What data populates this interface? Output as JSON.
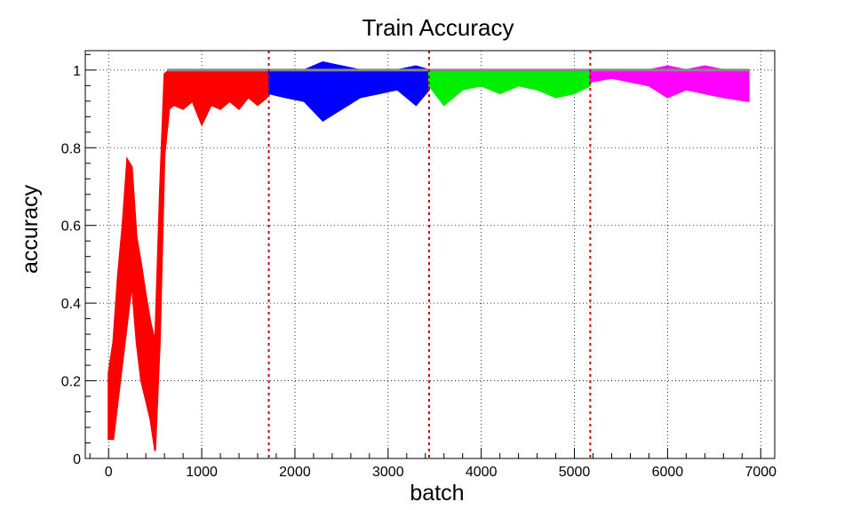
{
  "chart_data": {
    "type": "area",
    "title": "Train Accuracy",
    "xlabel": "batch",
    "ylabel": "accuracy",
    "xlim": [
      -250,
      7150
    ],
    "ylim": [
      0,
      1.05
    ],
    "x_ticks": [
      0,
      1000,
      2000,
      3000,
      4000,
      5000,
      6000,
      7000
    ],
    "y_ticks": [
      0,
      0.2,
      0.4,
      0.6,
      0.8,
      1
    ],
    "y_tick_labels": [
      "0",
      "0.2",
      "0.4",
      "0.6",
      "0.8",
      "1"
    ],
    "grid": true,
    "stage_boundaries": [
      1720,
      3440,
      5170
    ],
    "stage_boundary_color": "#cc0000",
    "series": [
      {
        "color": "#ff0000",
        "x": [
          0,
          50,
          100,
          150,
          200,
          250,
          300,
          350,
          400,
          450,
          500,
          550,
          600,
          650,
          700,
          800,
          900,
          1000,
          1100,
          1200,
          1300,
          1400,
          1500,
          1600,
          1700
        ],
        "low": [
          0.05,
          0.05,
          0.15,
          0.25,
          0.35,
          0.45,
          0.3,
          0.2,
          0.15,
          0.1,
          0.02,
          0.3,
          0.78,
          0.9,
          0.91,
          0.9,
          0.92,
          0.86,
          0.91,
          0.9,
          0.92,
          0.9,
          0.93,
          0.91,
          0.93
        ],
        "high": [
          0.22,
          0.3,
          0.47,
          0.6,
          0.77,
          0.75,
          0.57,
          0.5,
          0.42,
          0.35,
          0.3,
          0.68,
          0.99,
          1.0,
          1.0,
          1.0,
          1.0,
          1.0,
          1.0,
          1.0,
          1.0,
          1.0,
          1.0,
          1.0,
          1.0
        ]
      },
      {
        "color": "#0000ff",
        "x": [
          1720,
          1900,
          2100,
          2300,
          2500,
          2700,
          2900,
          3100,
          3300,
          3440
        ],
        "low": [
          0.94,
          0.93,
          0.92,
          0.87,
          0.9,
          0.93,
          0.94,
          0.95,
          0.91,
          0.95
        ],
        "high": [
          1.0,
          1.0,
          1.0,
          1.02,
          1.01,
          1.0,
          1.0,
          1.0,
          1.01,
          1.0
        ]
      },
      {
        "color": "#00ee00",
        "x": [
          3440,
          3600,
          3800,
          4000,
          4200,
          4400,
          4600,
          4800,
          5000,
          5170
        ],
        "low": [
          0.96,
          0.91,
          0.95,
          0.96,
          0.94,
          0.96,
          0.95,
          0.93,
          0.94,
          0.96
        ],
        "high": [
          1.0,
          1.0,
          1.0,
          1.0,
          1.0,
          1.0,
          1.0,
          1.0,
          1.0,
          1.0
        ]
      },
      {
        "color": "#ff00ff",
        "x": [
          5170,
          5400,
          5600,
          5800,
          6000,
          6200,
          6400,
          6600,
          6870
        ],
        "low": [
          0.97,
          0.98,
          0.97,
          0.96,
          0.93,
          0.95,
          0.94,
          0.93,
          0.92
        ],
        "high": [
          1.0,
          1.0,
          1.0,
          1.0,
          1.01,
          1.0,
          1.01,
          1.0,
          1.0
        ]
      }
    ],
    "mean_line": {
      "color": "#888888",
      "x": [
        630,
        6870
      ],
      "y": [
        1.0,
        1.0
      ]
    }
  }
}
